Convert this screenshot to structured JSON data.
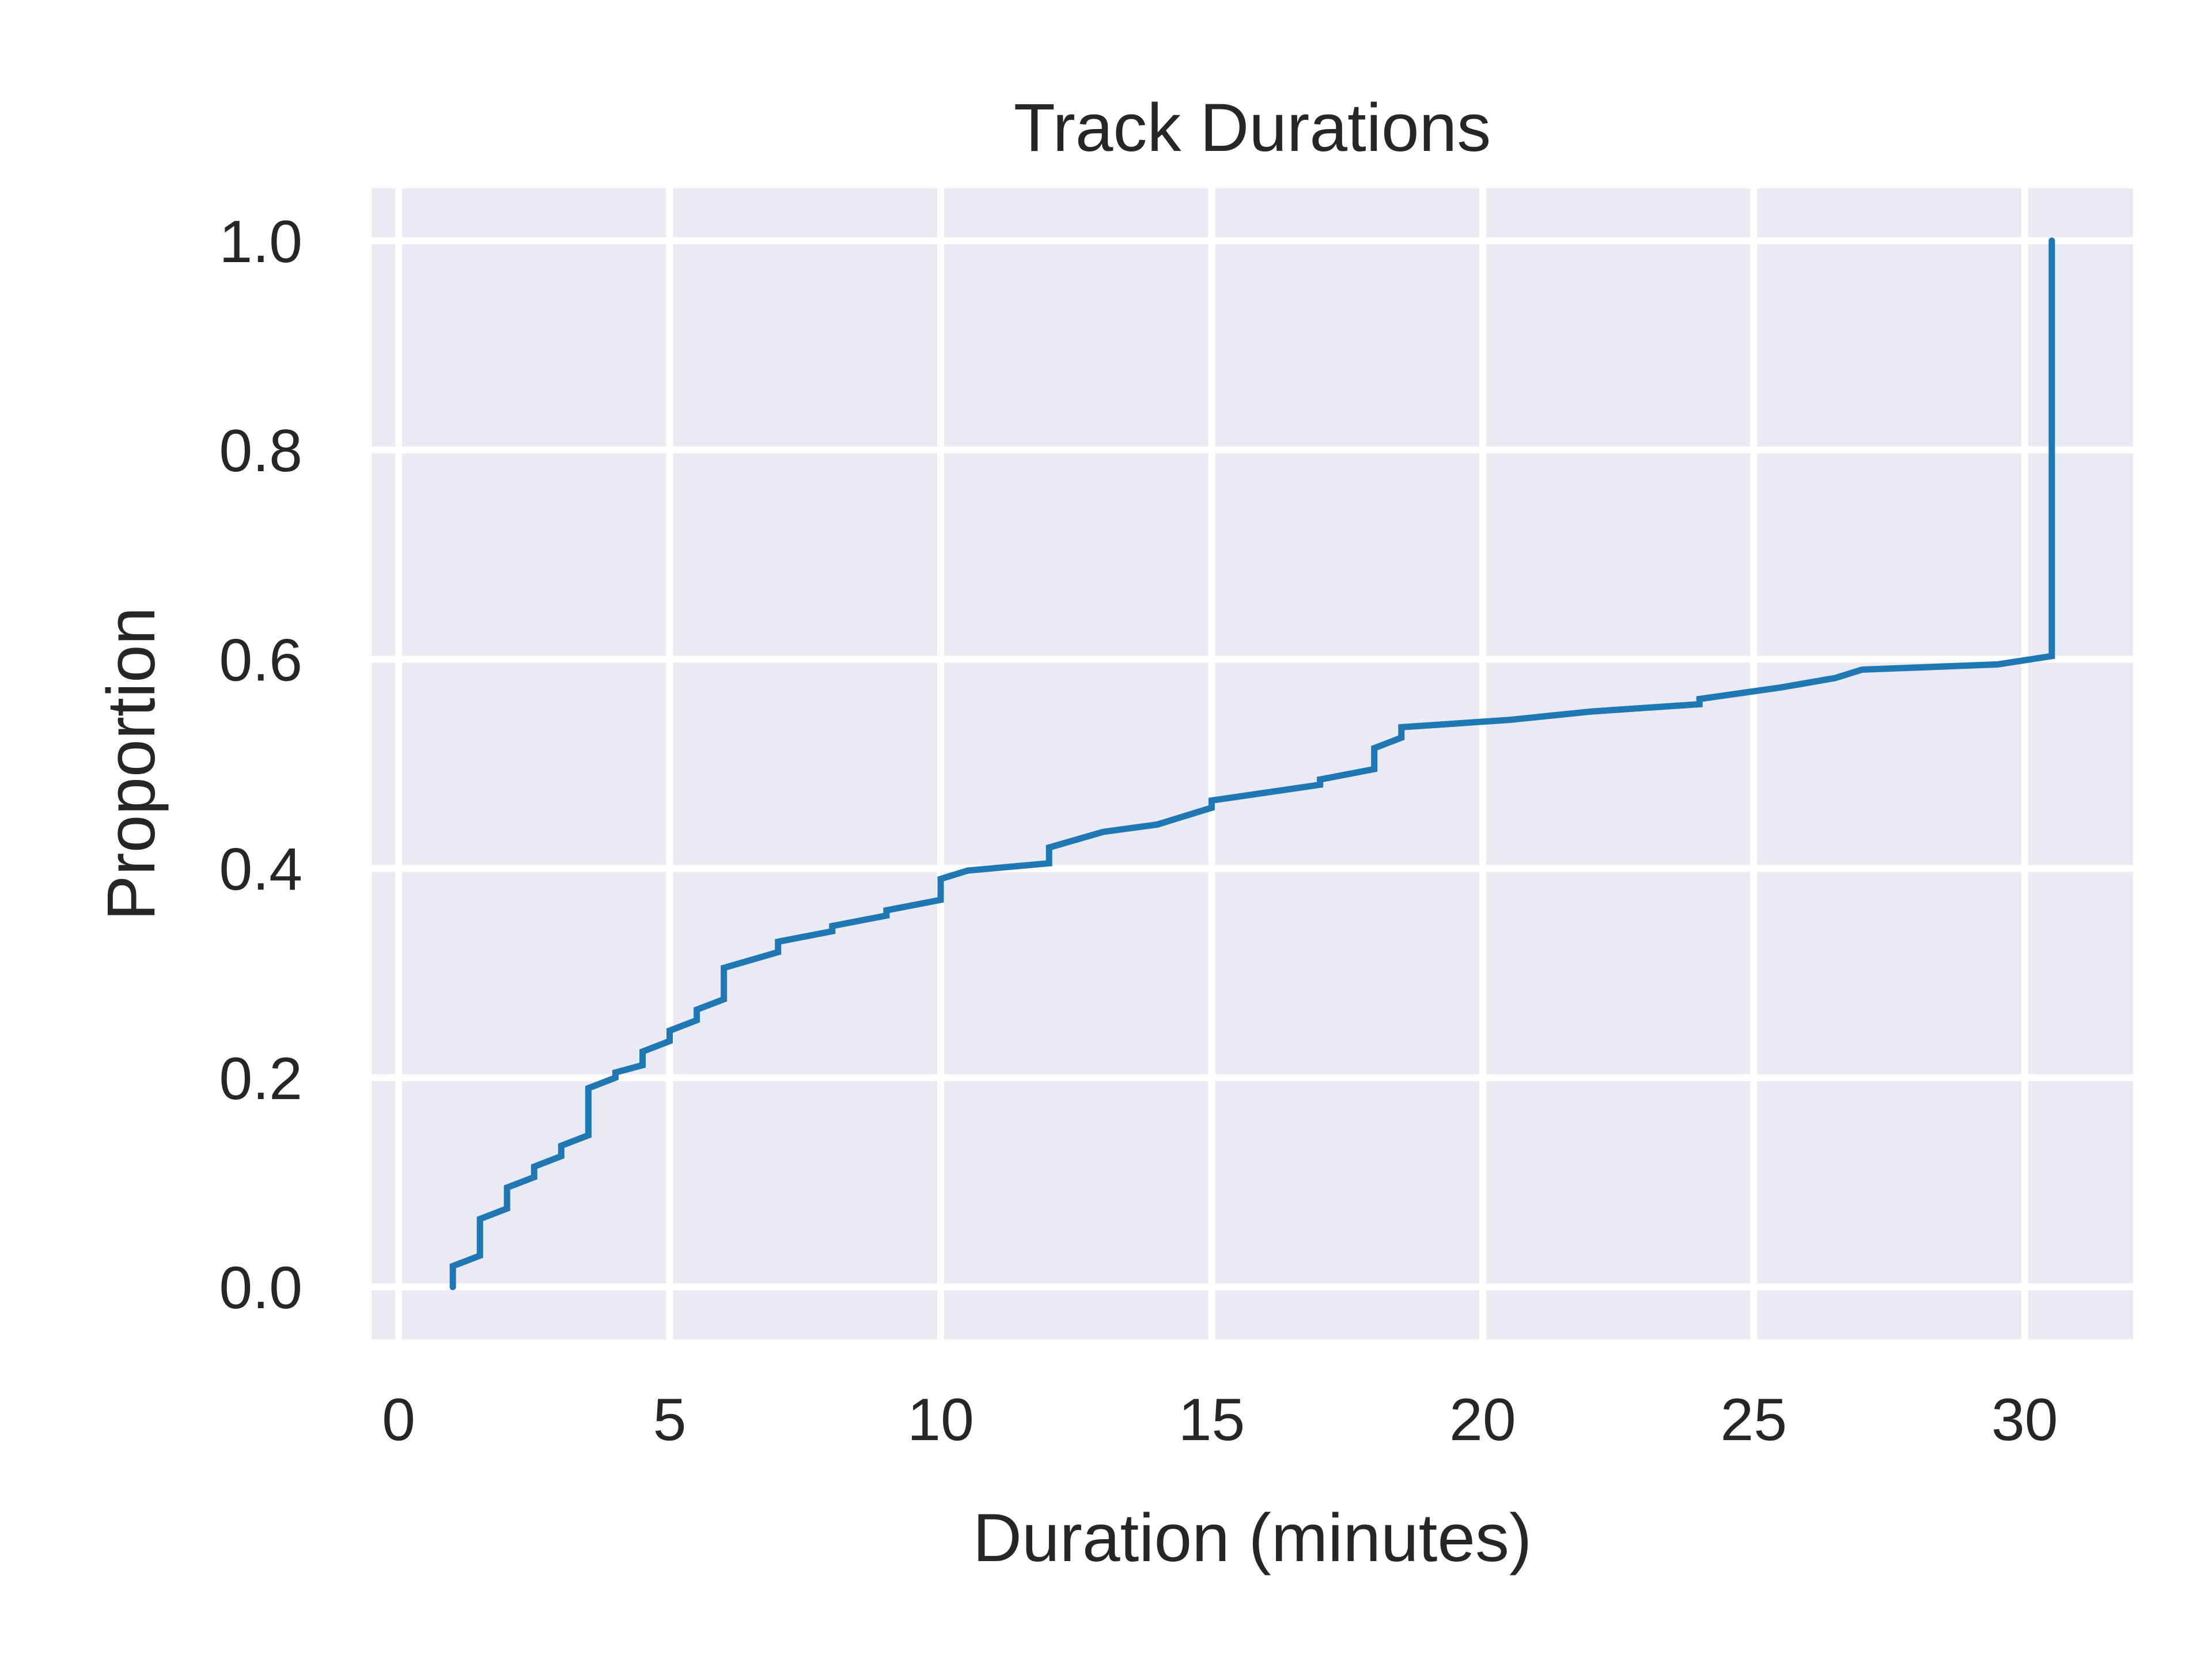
{
  "chart_data": {
    "type": "line",
    "title": "Track Durations",
    "xlabel": "Duration (minutes)",
    "ylabel": "Proportion",
    "xlim": [
      -0.5,
      32
    ],
    "ylim": [
      -0.05,
      1.05
    ],
    "x_ticks": [
      0,
      5,
      10,
      15,
      20,
      25,
      30
    ],
    "x_tick_labels": [
      "0",
      "5",
      "10",
      "15",
      "20",
      "25",
      "30"
    ],
    "y_ticks": [
      0.0,
      0.2,
      0.4,
      0.6,
      0.8,
      1.0
    ],
    "y_tick_labels": [
      "0.0",
      "0.2",
      "0.4",
      "0.6",
      "0.8",
      "1.0"
    ],
    "grid": true,
    "series_color": "#1f77b4",
    "background_color": "#eaeaf2",
    "grid_color": "#ffffff",
    "x": [
      1.0,
      1.0,
      1.5,
      1.5,
      2.0,
      2.0,
      2.5,
      2.5,
      3.0,
      3.0,
      3.5,
      3.5,
      4.0,
      4.0,
      4.5,
      4.5,
      5.0,
      5.0,
      5.5,
      5.5,
      6.0,
      6.0,
      7.0,
      7.0,
      8.0,
      8.0,
      9.0,
      9.0,
      10.0,
      10.0,
      10.5,
      12.0,
      12.0,
      13.0,
      14.0,
      15.0,
      15.0,
      17.0,
      17.0,
      18.0,
      18.0,
      18.5,
      18.5,
      20.5,
      22.0,
      24.0,
      24.0,
      25.5,
      26.5,
      27.0,
      29.5,
      30.5,
      30.5
    ],
    "y": [
      0.0,
      0.02,
      0.03,
      0.065,
      0.075,
      0.095,
      0.105,
      0.115,
      0.125,
      0.135,
      0.145,
      0.19,
      0.2,
      0.205,
      0.212,
      0.225,
      0.235,
      0.245,
      0.255,
      0.265,
      0.275,
      0.305,
      0.32,
      0.33,
      0.34,
      0.345,
      0.355,
      0.36,
      0.37,
      0.39,
      0.398,
      0.405,
      0.42,
      0.435,
      0.442,
      0.458,
      0.465,
      0.48,
      0.485,
      0.495,
      0.515,
      0.525,
      0.535,
      0.542,
      0.55,
      0.557,
      0.562,
      0.573,
      0.582,
      0.59,
      0.595,
      0.603,
      1.0
    ]
  }
}
